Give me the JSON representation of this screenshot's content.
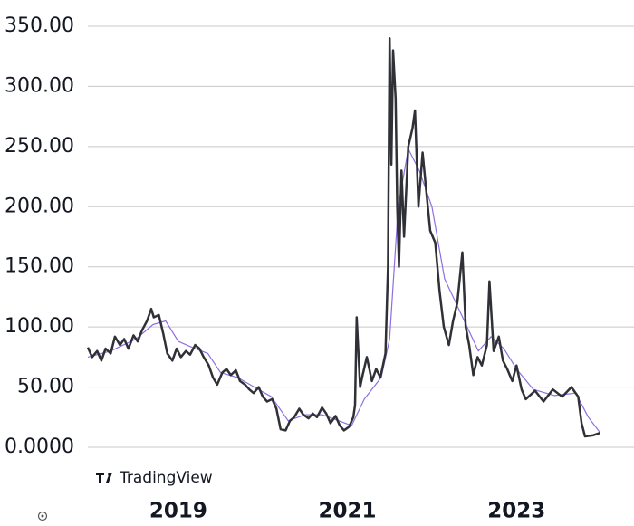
{
  "chart_data": {
    "type": "line",
    "watermark": "TradingView",
    "xlim": [
      2017.93,
      2024.39
    ],
    "xticks": [
      2019,
      2021,
      2023
    ],
    "ylim": [
      0,
      350
    ],
    "yticks": [
      {
        "value": 0,
        "label": "0.0000"
      },
      {
        "value": 50,
        "label": "50.00"
      },
      {
        "value": 100,
        "label": "100.00"
      },
      {
        "value": 150,
        "label": "150.00"
      },
      {
        "value": 200,
        "label": "200.00"
      },
      {
        "value": 250,
        "label": "250.00"
      },
      {
        "value": 300,
        "label": "300.00"
      },
      {
        "value": 350,
        "label": "350.00"
      }
    ],
    "grid": true,
    "series": [
      {
        "color": "#2f3136",
        "x": [
          2017.93,
          2017.98,
          2018.04,
          2018.09,
          2018.14,
          2018.2,
          2018.25,
          2018.31,
          2018.36,
          2018.41,
          2018.47,
          2018.52,
          2018.57,
          2018.63,
          2018.68,
          2018.71,
          2018.77,
          2018.82,
          2018.87,
          2018.93,
          2018.98,
          2019.03,
          2019.09,
          2019.14,
          2019.2,
          2019.25,
          2019.3,
          2019.36,
          2019.41,
          2019.46,
          2019.52,
          2019.57,
          2019.62,
          2019.68,
          2019.73,
          2019.79,
          2019.84,
          2019.89,
          2019.95,
          2020.0,
          2020.05,
          2020.11,
          2020.16,
          2020.21,
          2020.27,
          2020.32,
          2020.37,
          2020.43,
          2020.48,
          2020.54,
          2020.59,
          2020.64,
          2020.7,
          2020.75,
          2020.8,
          2020.86,
          2020.91,
          2020.96,
          2021.02,
          2021.07,
          2021.09,
          2021.11,
          2021.15,
          2021.18,
          2021.23,
          2021.29,
          2021.34,
          2021.39,
          2021.45,
          2021.48,
          2021.5,
          2021.52,
          2021.54,
          2021.57,
          2021.59,
          2021.61,
          2021.64,
          2021.67,
          2021.72,
          2021.77,
          2021.8,
          2021.84,
          2021.89,
          2021.93,
          2021.98,
          2022.04,
          2022.09,
          2022.14,
          2022.2,
          2022.25,
          2022.3,
          2022.36,
          2022.4,
          2022.44,
          2022.49,
          2022.54,
          2022.59,
          2022.65,
          2022.68,
          2022.73,
          2022.79,
          2022.84,
          2022.89,
          2022.95,
          2023.0,
          2023.06,
          2023.11,
          2023.22,
          2023.32,
          2023.43,
          2023.54,
          2023.65,
          2023.73,
          2023.77,
          2023.81,
          2023.91,
          2023.99
        ],
        "values": [
          83,
          75,
          80,
          72,
          82,
          78,
          92,
          85,
          90,
          82,
          93,
          88,
          97,
          105,
          115,
          108,
          110,
          95,
          78,
          72,
          82,
          75,
          80,
          77,
          85,
          82,
          75,
          68,
          58,
          52,
          62,
          65,
          60,
          64,
          55,
          52,
          48,
          45,
          50,
          42,
          38,
          40,
          32,
          15,
          14,
          22,
          25,
          32,
          27,
          24,
          28,
          25,
          33,
          28,
          20,
          26,
          18,
          14,
          17,
          25,
          35,
          108,
          50,
          60,
          75,
          55,
          65,
          58,
          78,
          150,
          340,
          235,
          330,
          290,
          200,
          150,
          230,
          175,
          250,
          265,
          280,
          200,
          245,
          215,
          180,
          170,
          130,
          100,
          85,
          105,
          120,
          162,
          100,
          85,
          60,
          75,
          68,
          85,
          138,
          80,
          92,
          72,
          65,
          55,
          68,
          48,
          40,
          47,
          38,
          48,
          42,
          50,
          42,
          20,
          9,
          10,
          12
        ]
      },
      {
        "color": "#8e6ee0",
        "x": [
          2017.93,
          2018.2,
          2018.5,
          2018.7,
          2018.85,
          2019.0,
          2019.2,
          2019.35,
          2019.5,
          2019.7,
          2019.9,
          2020.1,
          2020.3,
          2020.5,
          2020.7,
          2020.9,
          2021.05,
          2021.2,
          2021.4,
          2021.5,
          2021.6,
          2021.72,
          2021.85,
          2022.0,
          2022.15,
          2022.35,
          2022.55,
          2022.7,
          2022.85,
          2023.0,
          2023.2,
          2023.45,
          2023.7,
          2023.85,
          2023.99
        ],
        "values": [
          75,
          80,
          90,
          102,
          105,
          88,
          82,
          78,
          62,
          58,
          50,
          42,
          22,
          27,
          27,
          22,
          18,
          40,
          58,
          90,
          200,
          248,
          230,
          200,
          140,
          110,
          80,
          92,
          82,
          65,
          48,
          43,
          45,
          25,
          12
        ]
      }
    ]
  }
}
